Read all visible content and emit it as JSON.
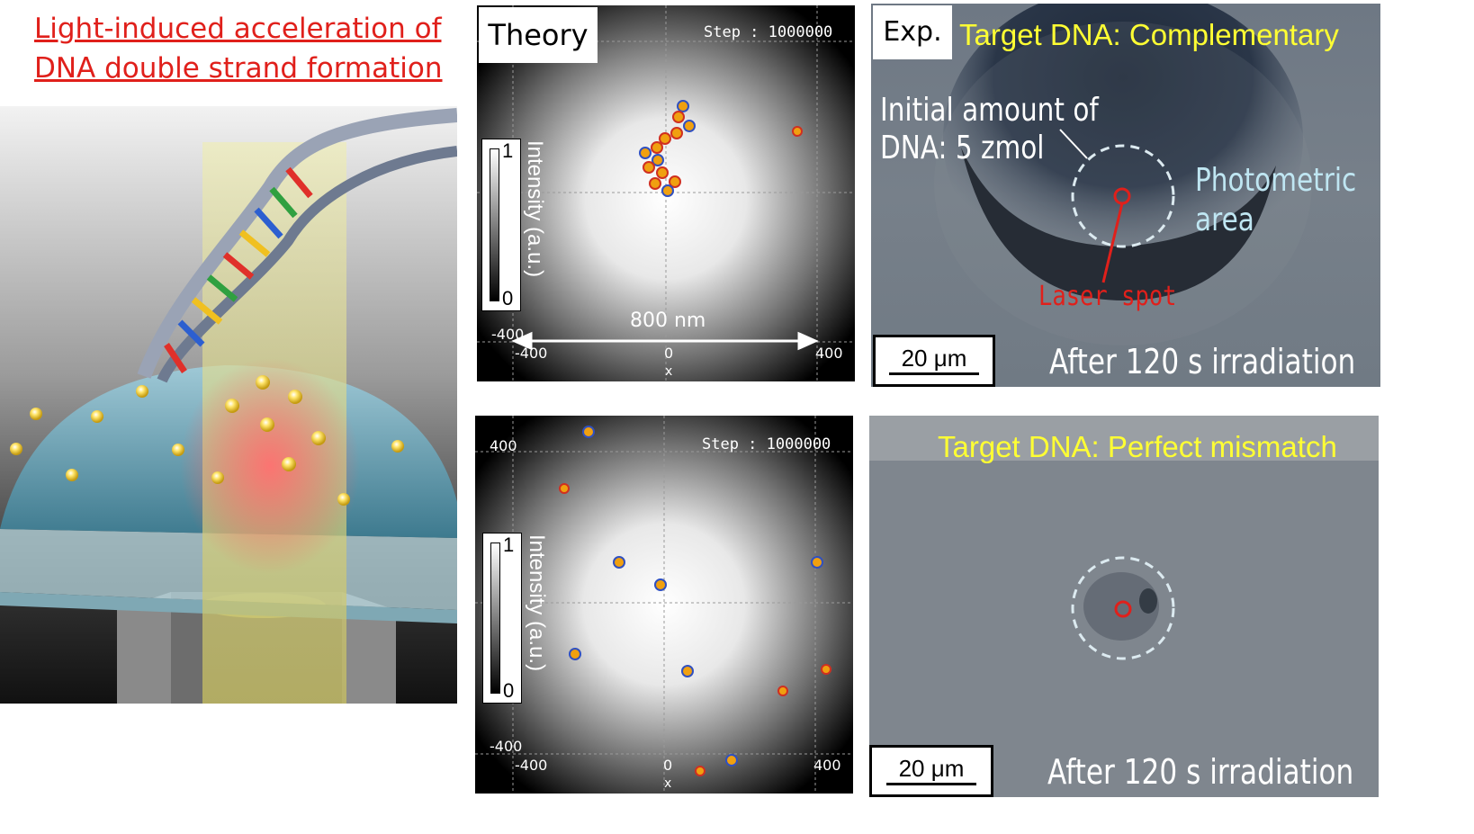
{
  "title": {
    "line1": "Light-induced acceleration of ",
    "line2": "DNA double strand formation"
  },
  "theory_panel": {
    "label": "Theory",
    "step": "Step : 1000000",
    "colorbar": {
      "max": "1",
      "min": "0",
      "title": "Intensity (a.u.)"
    },
    "distance": "800 nm",
    "ytick_min": "-400",
    "xticks": [
      "-400",
      "0",
      "400"
    ],
    "xlabel": "x"
  },
  "mismatch_sim_panel": {
    "step": "Step : 1000000",
    "colorbar": {
      "max": "1",
      "min": "0",
      "title": "Intensity (a.u.)"
    },
    "ytick_max": "400",
    "ytick_min": "-400",
    "xticks": [
      "-400",
      "0",
      "400"
    ],
    "xlabel": "x"
  },
  "exp_complementary": {
    "label": "Exp.",
    "target": "Target DNA: Complementary",
    "initial_line1": "Initial amount of",
    "initial_line2": "DNA: 5 zmol",
    "photometric_line1": "Photometric",
    "photometric_line2": "area",
    "laser": "Laser spot",
    "scale": "20 μm",
    "after": "After 120 s irradiation"
  },
  "exp_mismatch": {
    "target": "Target DNA: Perfect mismatch",
    "scale": "20 μm",
    "after": "After 120 s irradiation"
  },
  "colors": {
    "title_red": "#e0201b",
    "target_yellow": "#ffff33",
    "photometric_cyan": "#bfe6f2",
    "laser_red": "#e0201b"
  }
}
